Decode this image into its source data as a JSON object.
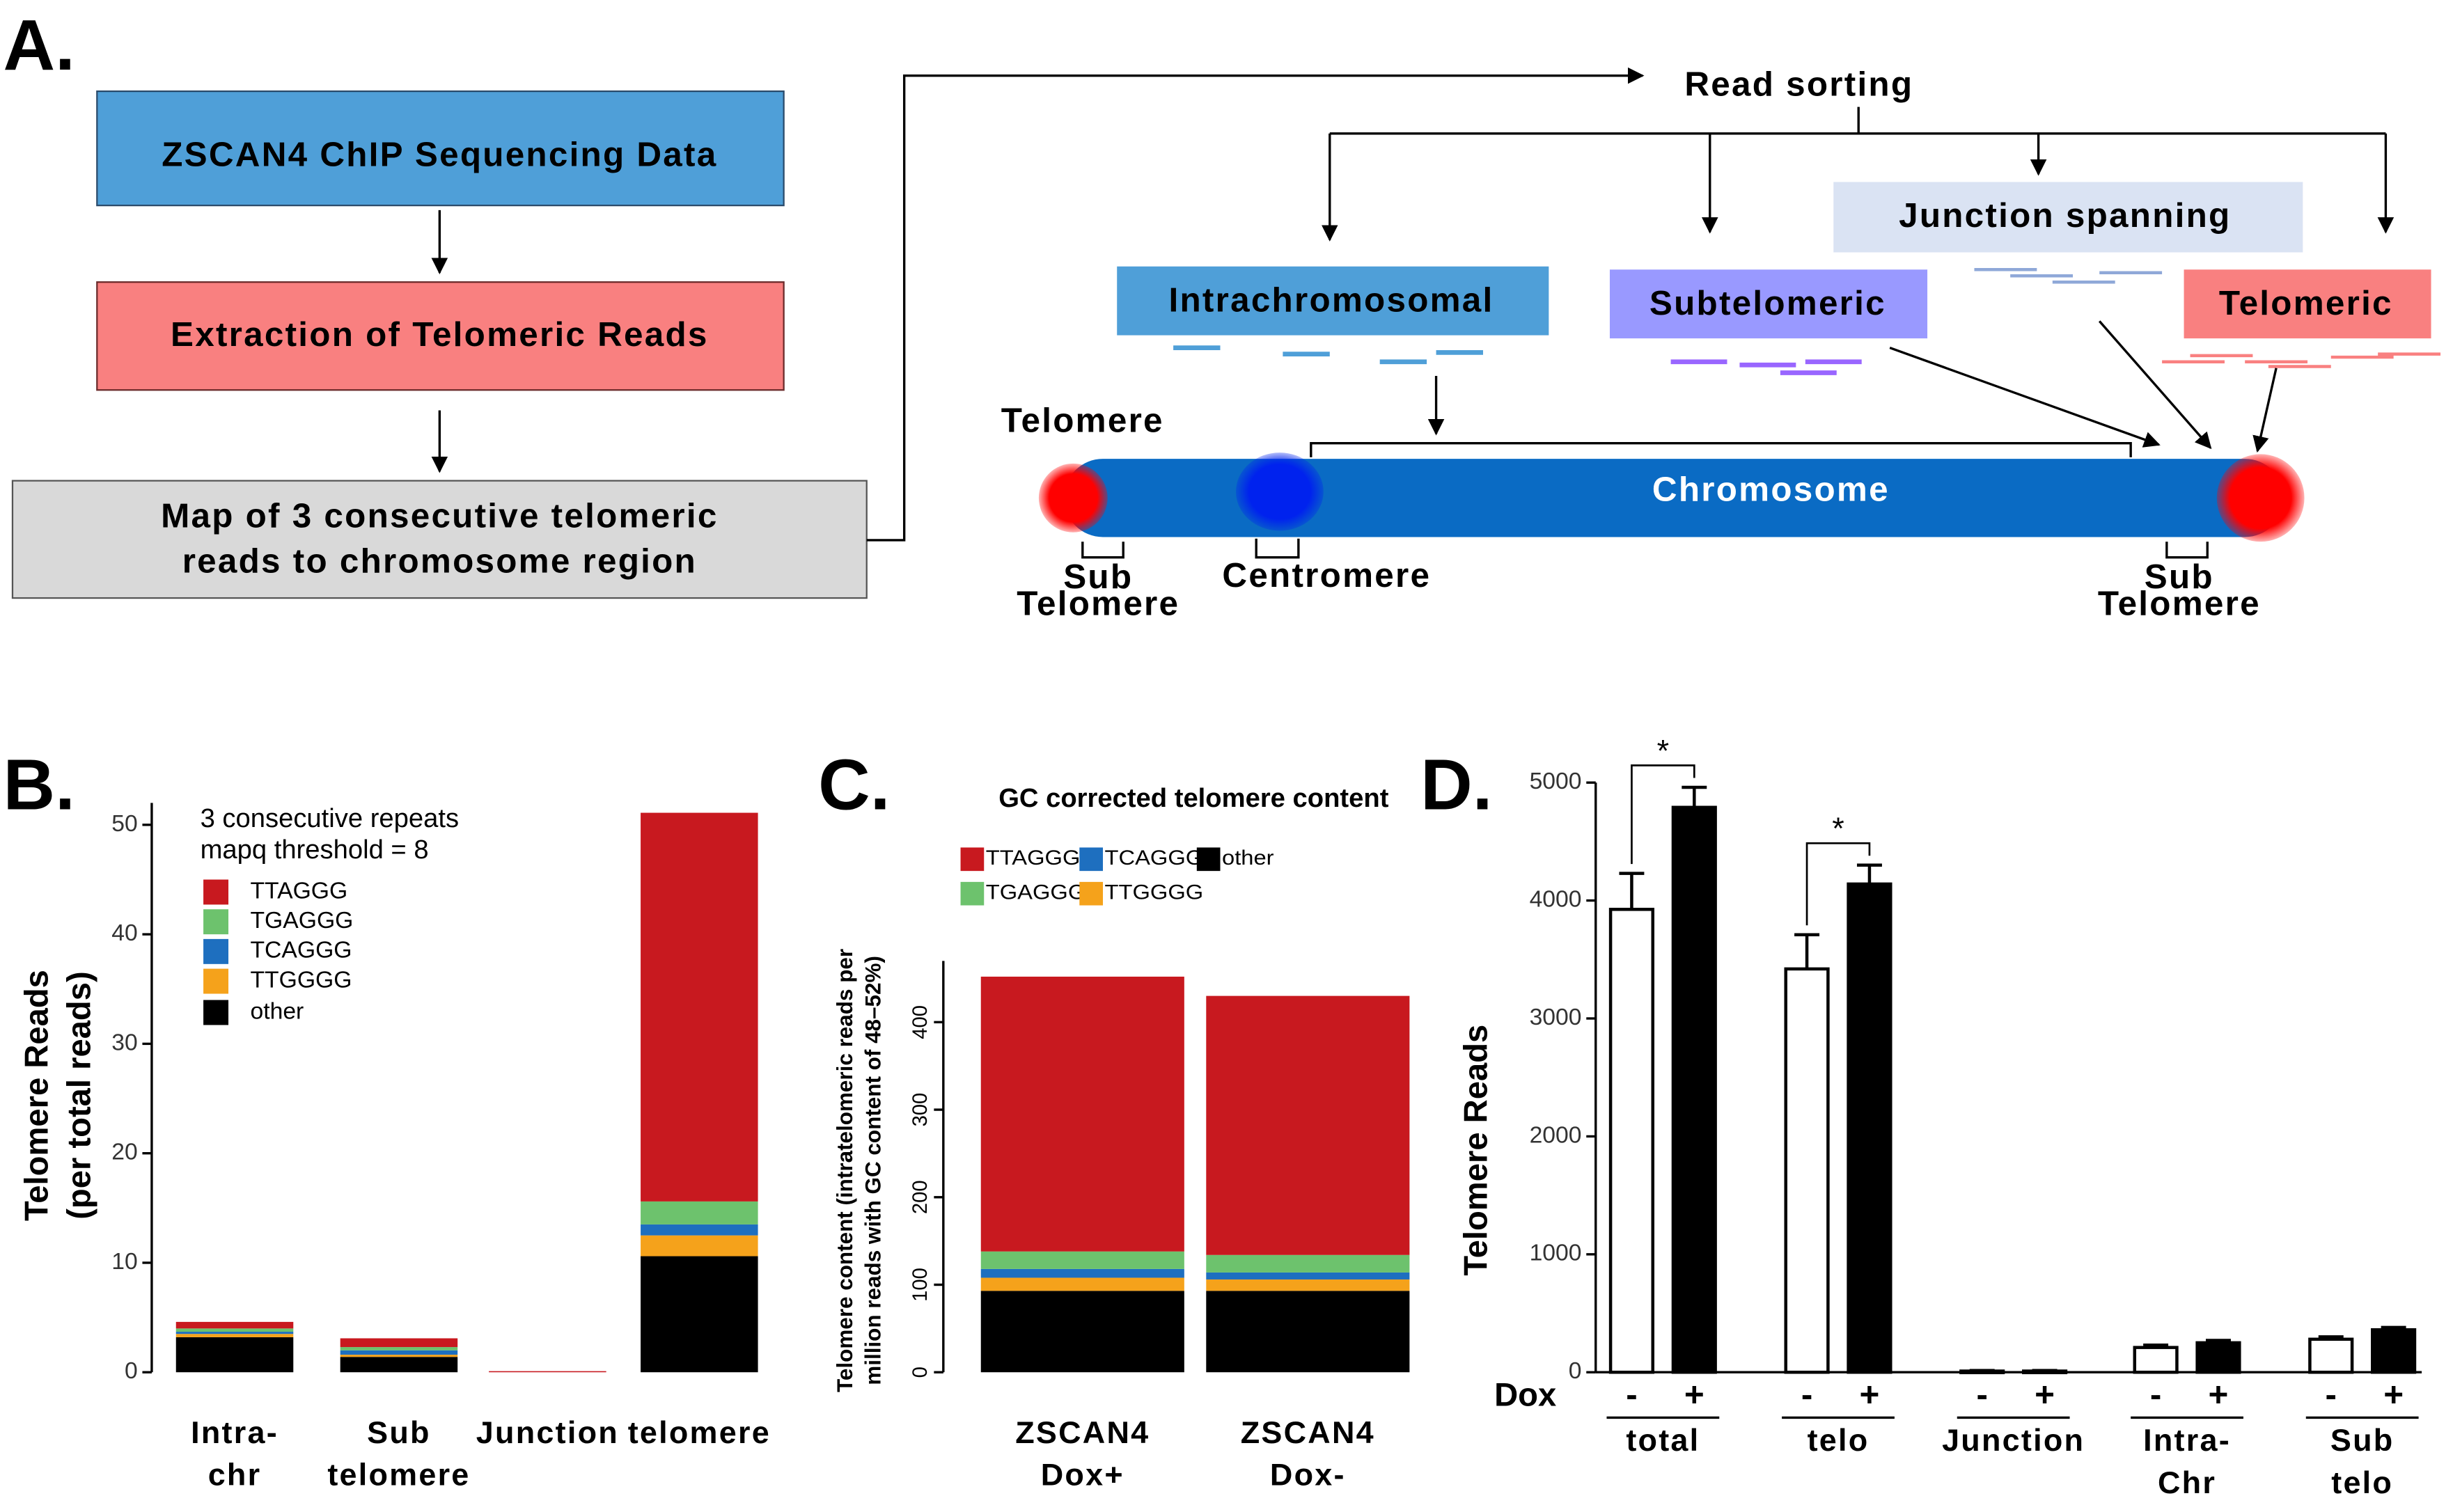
{
  "diagram": {
    "panel": "A.",
    "steps": [
      "ZSCAN4 ChIP Sequencing Data",
      "Extraction of Telomeric Reads",
      [
        "Map of 3 consecutive telomeric",
        "reads to chromosome region"
      ]
    ],
    "sorting": "Read sorting",
    "classes": [
      "Intrachromosomal",
      "Subtelomeric",
      "Junction spanning",
      "Telomeric"
    ],
    "chromosome": {
      "telomere": "Telomere",
      "body": "Chromosome",
      "centromere": "Centromere",
      "subtelomere_left": [
        "Sub",
        "Telomere"
      ],
      "subtelomere_right": [
        "Sub",
        "Telomere"
      ]
    }
  },
  "chart_data": [
    {
      "type": "bar",
      "stacked": true,
      "panel": "B.",
      "legend_title": [
        "3 consecutive repeats",
        "mapq threshold = 8"
      ],
      "ylabel": [
        "Telomere Reads",
        "(per total reads)"
      ],
      "categories": [
        [
          "Intra-",
          "chr"
        ],
        [
          "Sub",
          "telomere"
        ],
        [
          "Junction"
        ],
        [
          "telomere"
        ]
      ],
      "series": [
        {
          "name": "TTAGGG",
          "color": "#c8191f",
          "values": [
            0.6,
            0.8,
            0.1,
            35.5
          ]
        },
        {
          "name": "TGAGGG",
          "color": "#6dc26d",
          "values": [
            0.3,
            0.3,
            0,
            2.1
          ]
        },
        {
          "name": "TCAGGG",
          "color": "#1e6fbf",
          "values": [
            0.2,
            0.4,
            0,
            1.0
          ]
        },
        {
          "name": "TTGGGG",
          "color": "#f5a21b",
          "values": [
            0.3,
            0.2,
            0,
            1.9
          ]
        },
        {
          "name": "other",
          "color": "#000000",
          "values": [
            3.2,
            1.4,
            0,
            10.6
          ]
        }
      ],
      "ylim": [
        0,
        52
      ],
      "yticks": [
        0,
        10,
        20,
        30,
        40,
        50
      ]
    },
    {
      "type": "bar",
      "stacked": true,
      "panel": "C.",
      "title": "GC corrected telomere content",
      "ylabel": [
        "Telomere content (intratelomeric reads per",
        "million reads with GC content of 48–52%)"
      ],
      "categories": [
        [
          "ZSCAN4",
          "Dox+"
        ],
        [
          "ZSCAN4",
          "Dox-"
        ]
      ],
      "series": [
        {
          "name": "TTAGGG",
          "color": "#c8191f",
          "values": [
            314,
            296
          ]
        },
        {
          "name": "TGAGGG",
          "color": "#6dc26d",
          "values": [
            20,
            20
          ]
        },
        {
          "name": "TCAGGG",
          "color": "#1e6fbf",
          "values": [
            10,
            8
          ]
        },
        {
          "name": "TTGGGG",
          "color": "#f5a21b",
          "values": [
            15,
            13
          ]
        },
        {
          "name": "other",
          "color": "#000000",
          "values": [
            93,
            93
          ]
        }
      ],
      "ylim": [
        0,
        470
      ],
      "yticks": [
        0,
        100,
        200,
        300,
        400
      ]
    },
    {
      "type": "bar",
      "stacked": false,
      "panel": "D.",
      "ylabel": [
        "Telomere Reads"
      ],
      "xlabel": "Dox",
      "categories": [
        [
          "total"
        ],
        [
          "telo"
        ],
        [
          "Junction"
        ],
        [
          "Intra-",
          "Chr"
        ],
        [
          "Sub",
          "telo"
        ]
      ],
      "series": [
        {
          "name": "-",
          "color": "#ffffff",
          "values": [
            3925,
            3420,
            10,
            210,
            280
          ],
          "errors": [
            305,
            290,
            5,
            20,
            20
          ]
        },
        {
          "name": "+",
          "color": "#000000",
          "values": [
            4790,
            4140,
            10,
            250,
            360
          ],
          "errors": [
            170,
            160,
            5,
            20,
            20
          ]
        }
      ],
      "annotations": [
        {
          "text": "*",
          "category": 0
        },
        {
          "text": "*",
          "category": 1
        }
      ],
      "ylim": [
        0,
        5000
      ],
      "yticks": [
        0,
        1000,
        2000,
        3000,
        4000,
        5000
      ]
    }
  ]
}
